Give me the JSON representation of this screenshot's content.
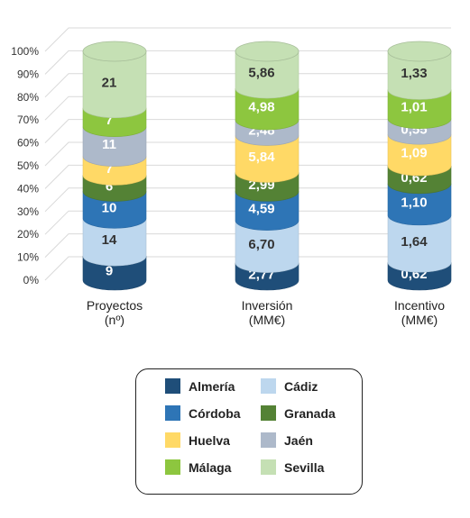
{
  "chart_data": {
    "type": "bar",
    "stacked": true,
    "style": "3d-cylinder",
    "ylim": [
      0,
      100
    ],
    "yticks": [
      "0%",
      "10%",
      "20%",
      "30%",
      "40%",
      "50%",
      "60%",
      "70%",
      "80%",
      "90%",
      "100%"
    ],
    "categories": [
      {
        "line1": "Proyectos",
        "line2": "(nº)"
      },
      {
        "line1": "Inversión",
        "line2": "(MM€)"
      },
      {
        "line1": "Incentivo",
        "line2": "(MM€)"
      }
    ],
    "series": [
      {
        "name": "Almería",
        "color": "#1f4e79",
        "label_color": "#ffffff",
        "values": [
          9,
          2.77,
          0.62
        ],
        "labels": [
          "9",
          "2,77",
          "0,62"
        ]
      },
      {
        "name": "Cádiz",
        "color": "#bdd7ee",
        "label_color": "#333333",
        "values": [
          14,
          6.7,
          1.64
        ],
        "labels": [
          "14",
          "6,70",
          "1,64"
        ]
      },
      {
        "name": "Córdoba",
        "color": "#2e75b6",
        "label_color": "#ffffff",
        "values": [
          10,
          4.59,
          1.1
        ],
        "labels": [
          "10",
          "4,59",
          "1,10"
        ]
      },
      {
        "name": "Granada",
        "color": "#548235",
        "label_color": "#ffffff",
        "values": [
          6,
          2.99,
          0.62
        ],
        "labels": [
          "6",
          "2,99",
          "0,62"
        ]
      },
      {
        "name": "Huelva",
        "color": "#ffd966",
        "label_color": "#ffffff",
        "values": [
          7,
          5.84,
          1.09
        ],
        "labels": [
          "7",
          "5,84",
          "1,09"
        ]
      },
      {
        "name": "Jaén",
        "color": "#adb9ca",
        "label_color": "#ffffff",
        "values": [
          11,
          2.48,
          0.55
        ],
        "labels": [
          "11",
          "2,48",
          "0,55"
        ]
      },
      {
        "name": "Málaga",
        "color": "#8dc63f",
        "label_color": "#ffffff",
        "values": [
          7,
          4.98,
          1.01
        ],
        "labels": [
          "7",
          "4,98",
          "1,01"
        ]
      },
      {
        "name": "Sevilla",
        "color": "#c5e0b4",
        "label_color": "#333333",
        "values": [
          21,
          5.86,
          1.33
        ],
        "labels": [
          "21",
          "5,86",
          "1,33"
        ]
      }
    ],
    "legend_position": "bottom"
  }
}
